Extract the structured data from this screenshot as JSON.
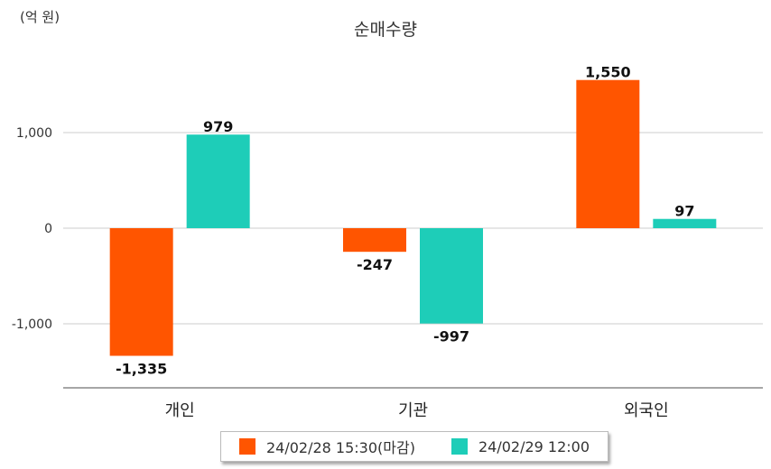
{
  "chart_data": {
    "type": "bar",
    "title": "순매수량",
    "unit_label": "(억 원)",
    "categories": [
      "개인",
      "기관",
      "외국인"
    ],
    "series": [
      {
        "name": "24/02/28 15:30(마감)",
        "color": "#ff5500",
        "values": [
          -1335,
          -247,
          1550
        ],
        "labels": [
          "-1,335",
          "-247",
          "1,550"
        ]
      },
      {
        "name": "24/02/29 12:00",
        "color": "#1ecdb8",
        "values": [
          979,
          -997,
          97
        ],
        "labels": [
          "979",
          "-997",
          "97"
        ]
      }
    ],
    "y_ticks": [
      1000,
      0,
      -1000
    ],
    "y_tick_labels": [
      "1,000",
      "0",
      "-1,000"
    ],
    "ylim": [
      -1650,
      2000
    ],
    "grid": true,
    "legend_position": "bottom"
  }
}
